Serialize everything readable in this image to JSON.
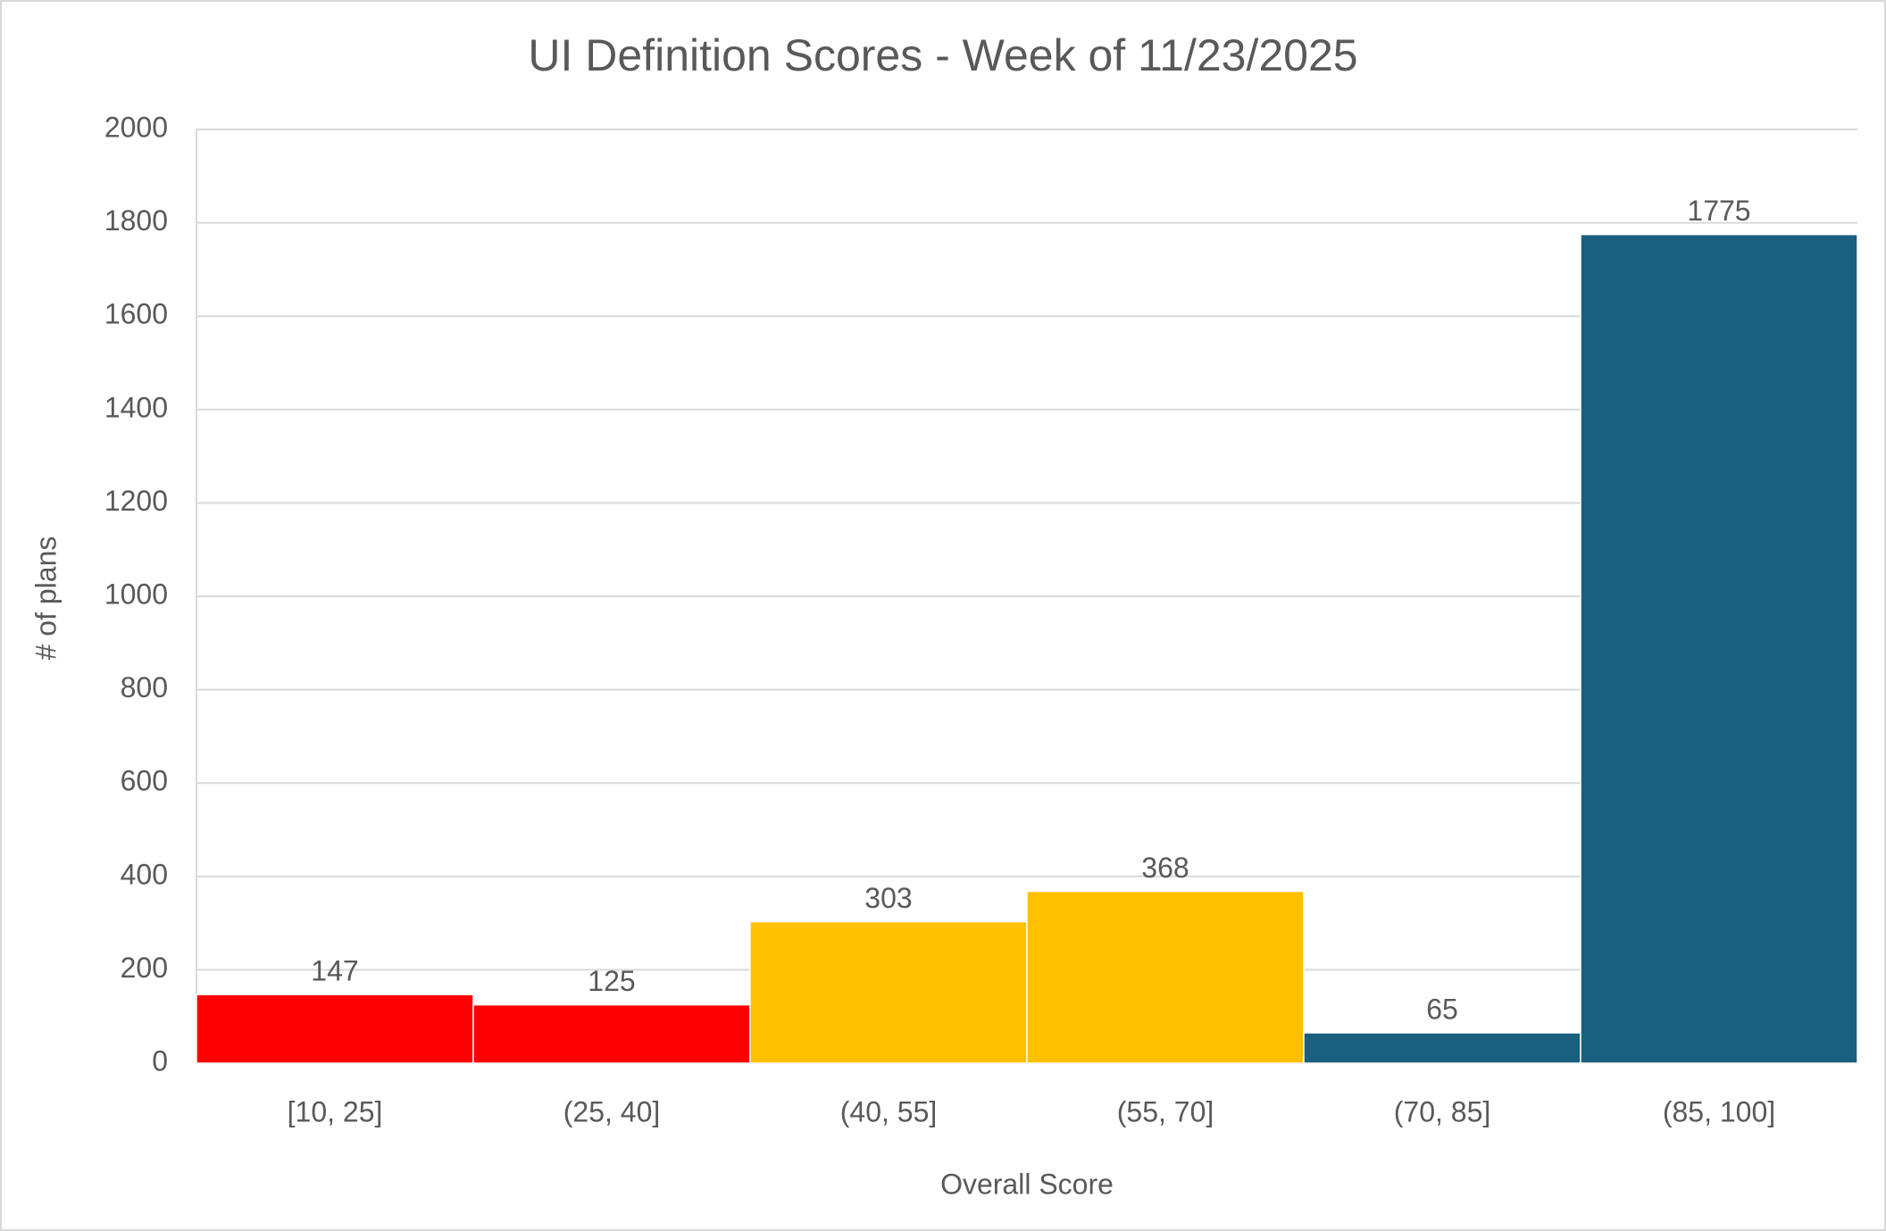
{
  "chart_data": {
    "type": "bar",
    "title": "UI Definition Scores - Week of 11/23/2025",
    "x_label": "Overall Score",
    "y_label": "# of plans",
    "categories": [
      "[10, 25]",
      "(25, 40]",
      "(40, 55]",
      "(55, 70]",
      "(70, 85]",
      "(85, 100]"
    ],
    "values": [
      147,
      125,
      303,
      368,
      65,
      1775
    ],
    "colors": [
      "#ff0000",
      "#ff0000",
      "#ffc000",
      "#ffc000",
      "#1a5e80",
      "#1a5e80"
    ],
    "ylim": [
      0,
      2000
    ],
    "yticks": [
      0,
      200,
      400,
      600,
      800,
      1000,
      1200,
      1400,
      1600,
      1800,
      2000
    ],
    "grid": true
  }
}
